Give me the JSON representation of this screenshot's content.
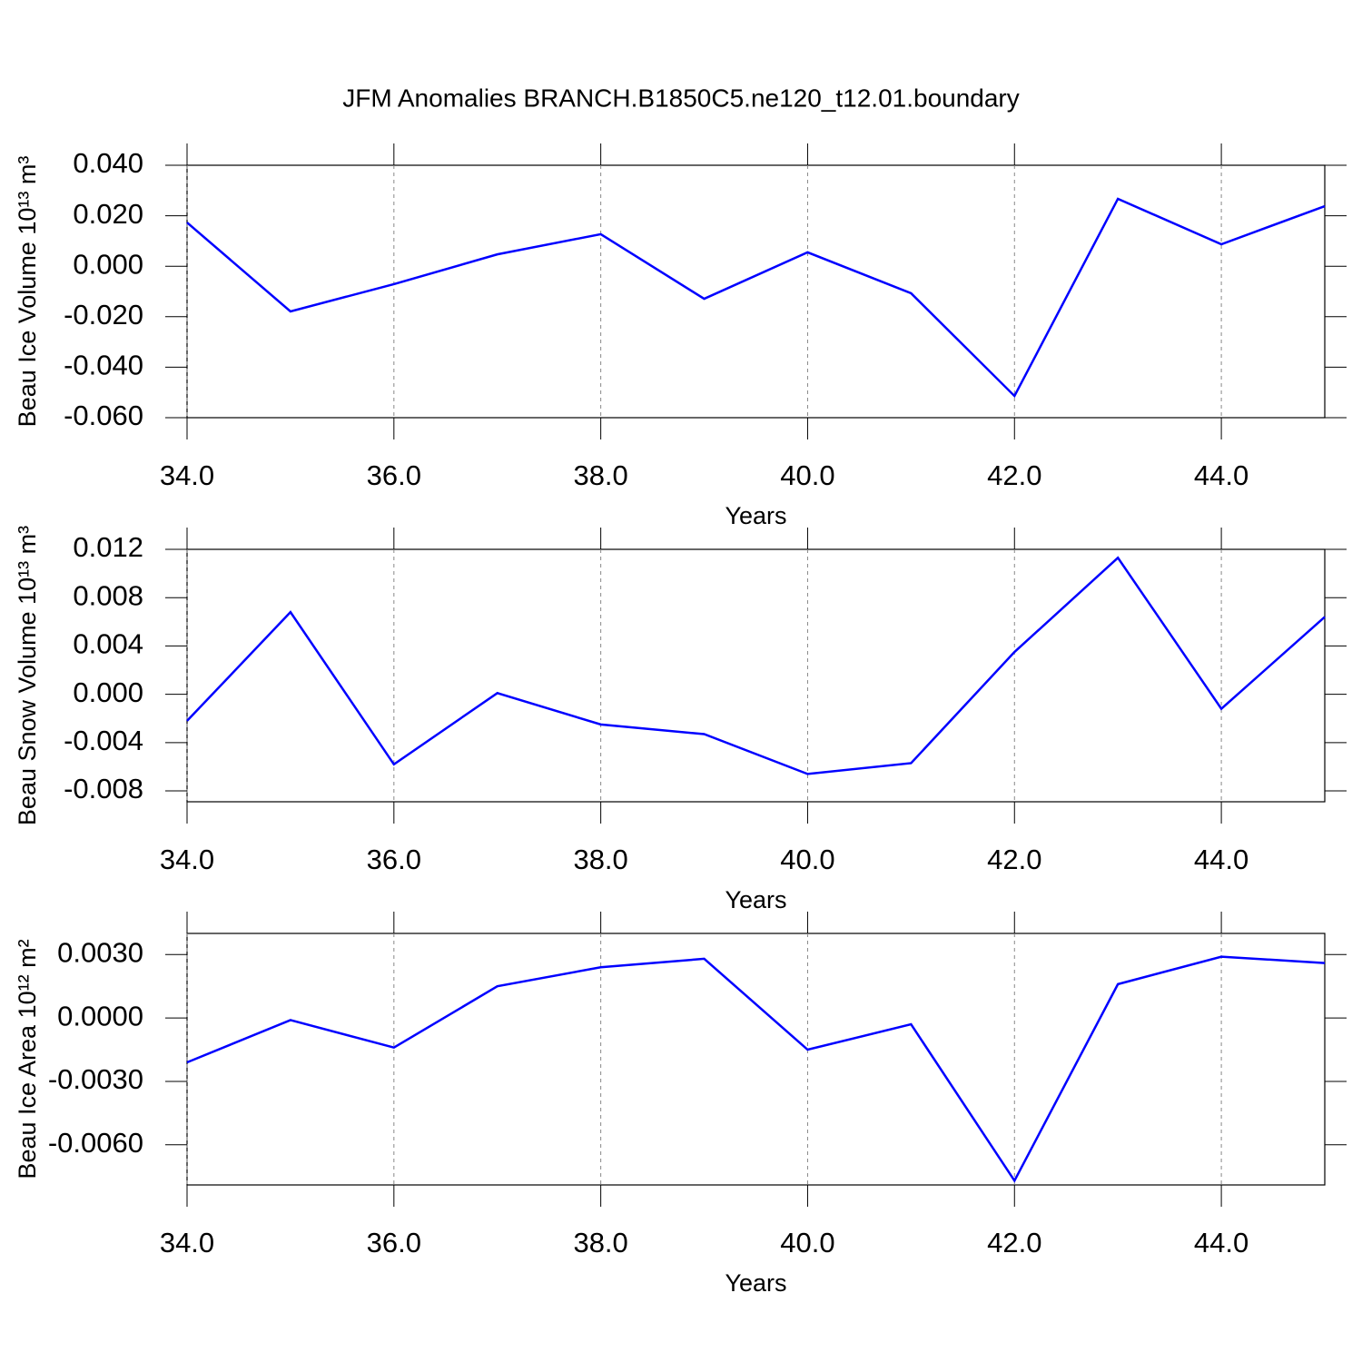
{
  "chart_data": [
    {
      "type": "line",
      "title": "JFM Anomalies BRANCH.B1850C5.ne120_t12.01.boundary",
      "ylabel": "Beau Ice Volume 10¹³ m³",
      "xlabel": "Years",
      "x": [
        34,
        35,
        36,
        37,
        38,
        39,
        40,
        41,
        42,
        43,
        44,
        45
      ],
      "series": [
        {
          "color": "#0000ff",
          "values": [
            0.0173,
            -0.0179,
            -0.0071,
            0.0047,
            0.0127,
            -0.0129,
            0.0055,
            -0.0107,
            -0.0514,
            0.0267,
            0.0087,
            0.0238
          ]
        }
      ],
      "xlim": [
        34,
        45
      ],
      "ylim": [
        -0.06,
        0.04
      ],
      "xticks": [
        {
          "value": 34,
          "label": "34.0"
        },
        {
          "value": 36,
          "label": "36.0"
        },
        {
          "value": 38,
          "label": "38.0"
        },
        {
          "value": 40,
          "label": "40.0"
        },
        {
          "value": 42,
          "label": "42.0"
        },
        {
          "value": 44,
          "label": "44.0"
        }
      ],
      "yticks": [
        {
          "value": -0.06,
          "label": "-0.060"
        },
        {
          "value": -0.04,
          "label": "-0.040"
        },
        {
          "value": -0.02,
          "label": "-0.020"
        },
        {
          "value": 0,
          "label": "0.000"
        },
        {
          "value": 0.02,
          "label": "0.020"
        },
        {
          "value": 0.04,
          "label": "0.040"
        }
      ],
      "grid": "x"
    },
    {
      "type": "line",
      "ylabel": "Beau Snow Volume 10¹³ m³",
      "xlabel": "Years",
      "x": [
        34,
        35,
        36,
        37,
        38,
        39,
        40,
        41,
        42,
        43,
        44,
        45
      ],
      "series": [
        {
          "color": "#0000ff",
          "values": [
            -0.0022,
            0.0068,
            -0.0058,
            0.0001,
            -0.0025,
            -0.0033,
            -0.0066,
            -0.0057,
            0.0035,
            0.0113,
            -0.0012,
            0.0064
          ]
        }
      ],
      "xlim": [
        34,
        45
      ],
      "ylim": [
        -0.0089,
        0.012
      ],
      "xticks": [
        {
          "value": 34,
          "label": "34.0"
        },
        {
          "value": 36,
          "label": "36.0"
        },
        {
          "value": 38,
          "label": "38.0"
        },
        {
          "value": 40,
          "label": "40.0"
        },
        {
          "value": 42,
          "label": "42.0"
        },
        {
          "value": 44,
          "label": "44.0"
        }
      ],
      "yticks": [
        {
          "value": -0.008,
          "label": "-0.008"
        },
        {
          "value": -0.004,
          "label": "-0.004"
        },
        {
          "value": 0,
          "label": "0.000"
        },
        {
          "value": 0.004,
          "label": "0.004"
        },
        {
          "value": 0.008,
          "label": "0.008"
        },
        {
          "value": 0.012,
          "label": "0.012"
        }
      ],
      "grid": "x"
    },
    {
      "type": "line",
      "ylabel": "Beau Ice Area 10¹² m²",
      "xlabel": "Years",
      "x": [
        34,
        35,
        36,
        37,
        38,
        39,
        40,
        41,
        42,
        43,
        44,
        45
      ],
      "series": [
        {
          "color": "#0000ff",
          "values": [
            -0.0021,
            -0.0001,
            -0.0014,
            0.0015,
            0.0024,
            0.0028,
            -0.0015,
            -0.0003,
            -0.0077,
            0.0016,
            0.0029,
            0.0026
          ]
        }
      ],
      "xlim": [
        34,
        45
      ],
      "ylim": [
        -0.0079,
        0.004
      ],
      "xticks": [
        {
          "value": 34,
          "label": "34.0"
        },
        {
          "value": 36,
          "label": "36.0"
        },
        {
          "value": 38,
          "label": "38.0"
        },
        {
          "value": 40,
          "label": "40.0"
        },
        {
          "value": 42,
          "label": "42.0"
        },
        {
          "value": 44,
          "label": "44.0"
        }
      ],
      "yticks": [
        {
          "value": -0.006,
          "label": "-0.0060"
        },
        {
          "value": -0.003,
          "label": "-0.0030"
        },
        {
          "value": 0,
          "label": "0.0000"
        },
        {
          "value": 0.003,
          "label": "0.0030"
        }
      ],
      "grid": "x"
    }
  ]
}
